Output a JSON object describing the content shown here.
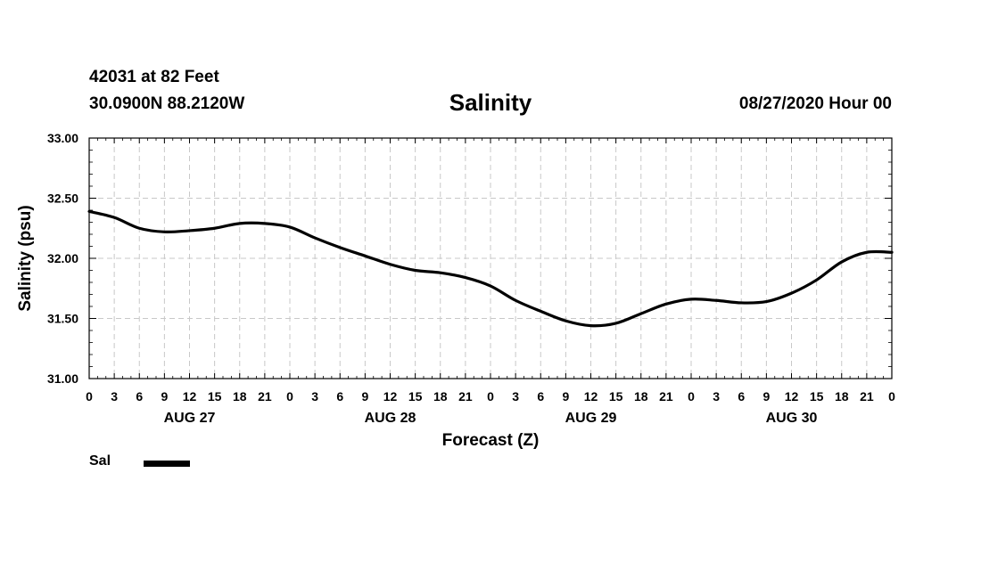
{
  "header": {
    "station": "42031 at 82 Feet",
    "coords": "30.0900N 88.2120W",
    "title": "Salinity",
    "datetime": "08/27/2020 Hour 00"
  },
  "legend": {
    "label": "Sal",
    "color": "#000000"
  },
  "chart_data": {
    "type": "line",
    "title": "Salinity",
    "xlabel": "Forecast (Z)",
    "ylabel": "Salinity (psu)",
    "ylim": [
      31.0,
      33.0
    ],
    "xlim": [
      0,
      96
    ],
    "yticks": [
      "31.00",
      "31.50",
      "32.00",
      "32.50",
      "33.00"
    ],
    "xticks": [
      "0",
      "3",
      "6",
      "9",
      "12",
      "15",
      "18",
      "21",
      "0",
      "3",
      "6",
      "9",
      "12",
      "15",
      "18",
      "21",
      "0",
      "3",
      "6",
      "9",
      "12",
      "15",
      "18",
      "21",
      "0",
      "3",
      "6",
      "9",
      "12",
      "15",
      "18",
      "21",
      "0"
    ],
    "day_labels": [
      "AUG 27",
      "AUG 28",
      "AUG 29",
      "AUG 30"
    ],
    "grid": true,
    "series": [
      {
        "name": "Sal",
        "x": [
          0,
          3,
          6,
          9,
          12,
          15,
          18,
          21,
          24,
          27,
          30,
          33,
          36,
          39,
          42,
          45,
          48,
          51,
          54,
          57,
          60,
          63,
          66,
          69,
          72,
          75,
          78,
          81,
          84,
          87,
          90,
          93,
          96
        ],
        "values": [
          32.39,
          32.34,
          32.25,
          32.22,
          32.23,
          32.25,
          32.29,
          32.29,
          32.26,
          32.17,
          32.09,
          32.02,
          31.95,
          31.9,
          31.88,
          31.84,
          31.77,
          31.65,
          31.56,
          31.48,
          31.44,
          31.46,
          31.54,
          31.62,
          31.66,
          31.65,
          31.63,
          31.64,
          31.71,
          31.82,
          31.97,
          32.05,
          32.05
        ]
      }
    ]
  }
}
